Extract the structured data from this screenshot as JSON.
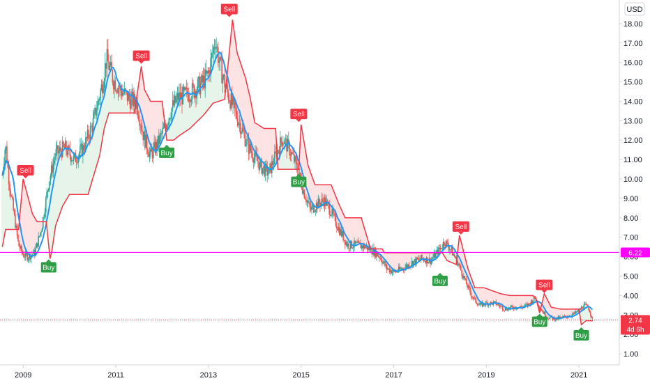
{
  "currency_button": "USD",
  "colors": {
    "up": "#26a69a",
    "down": "#ef5350",
    "ma": "#2196f3",
    "trail": "#f23645",
    "fill_sell": "#fde3e3",
    "fill_buy": "#e6f4ea",
    "hline": "#ff00ff",
    "buy_label": "#2e9e45",
    "sell_label": "#f23645",
    "price_tag": "#f23645"
  },
  "hline_label": "6.22",
  "last_price_label": "2.74",
  "countdown_label": "4d 6h",
  "chart_data": {
    "type": "candlestick",
    "x_axis": {
      "ticks": [
        "2009",
        "2011",
        "2013",
        "2015",
        "2017",
        "2019",
        "2021"
      ],
      "tick_values": [
        2009,
        2011,
        2013,
        2015,
        2017,
        2019,
        2021
      ],
      "range": [
        2008.5,
        2021.75
      ]
    },
    "y_axis": {
      "ticks": [
        "1.00",
        "2.00",
        "3.00",
        "4.00",
        "5.00",
        "6.00",
        "7.00",
        "8.00",
        "9.00",
        "10.00",
        "11.00",
        "12.00",
        "13.00",
        "14.00",
        "15.00",
        "16.00",
        "17.00",
        "18.00"
      ],
      "range": [
        0.5,
        19.0
      ]
    },
    "horizontal_line": 6.22,
    "last_price": 2.74,
    "price_path": [
      [
        2008.55,
        10.2
      ],
      [
        2008.62,
        11.8
      ],
      [
        2008.7,
        9.8
      ],
      [
        2008.8,
        8.2
      ],
      [
        2008.9,
        6.6
      ],
      [
        2009.0,
        6.1
      ],
      [
        2009.1,
        6.0
      ],
      [
        2009.25,
        6.2
      ],
      [
        2009.4,
        7.5
      ],
      [
        2009.55,
        9.8
      ],
      [
        2009.7,
        11.3
      ],
      [
        2009.9,
        11.6
      ],
      [
        2010.1,
        11.0
      ],
      [
        2010.3,
        11.6
      ],
      [
        2010.5,
        12.8
      ],
      [
        2010.7,
        14.8
      ],
      [
        2010.8,
        16.2
      ],
      [
        2010.95,
        15.1
      ],
      [
        2011.1,
        14.6
      ],
      [
        2011.3,
        14.1
      ],
      [
        2011.45,
        13.9
      ],
      [
        2011.6,
        12.2
      ],
      [
        2011.75,
        11.2
      ],
      [
        2011.9,
        11.8
      ],
      [
        2012.05,
        12.6
      ],
      [
        2012.2,
        13.6
      ],
      [
        2012.35,
        14.2
      ],
      [
        2012.5,
        14.3
      ],
      [
        2012.7,
        14.6
      ],
      [
        2012.85,
        14.9
      ],
      [
        2013.0,
        15.4
      ],
      [
        2013.15,
        17.2
      ],
      [
        2013.25,
        15.8
      ],
      [
        2013.4,
        14.5
      ],
      [
        2013.55,
        13.6
      ],
      [
        2013.7,
        12.7
      ],
      [
        2013.85,
        11.7
      ],
      [
        2014.0,
        11.1
      ],
      [
        2014.15,
        10.6
      ],
      [
        2014.3,
        10.3
      ],
      [
        2014.45,
        11.2
      ],
      [
        2014.6,
        12.1
      ],
      [
        2014.75,
        11.5
      ],
      [
        2014.9,
        10.7
      ],
      [
        2015.05,
        9.4
      ],
      [
        2015.2,
        8.4
      ],
      [
        2015.35,
        8.7
      ],
      [
        2015.5,
        8.9
      ],
      [
        2015.65,
        8.3
      ],
      [
        2015.8,
        7.5
      ],
      [
        2016.0,
        6.6
      ],
      [
        2016.2,
        6.6
      ],
      [
        2016.4,
        6.5
      ],
      [
        2016.55,
        6.3
      ],
      [
        2016.7,
        6.0
      ],
      [
        2016.85,
        5.4
      ],
      [
        2017.0,
        5.2
      ],
      [
        2017.2,
        5.4
      ],
      [
        2017.4,
        5.7
      ],
      [
        2017.6,
        5.9
      ],
      [
        2017.8,
        5.8
      ],
      [
        2018.0,
        6.4
      ],
      [
        2018.1,
        6.8
      ],
      [
        2018.25,
        6.3
      ],
      [
        2018.4,
        5.6
      ],
      [
        2018.55,
        4.7
      ],
      [
        2018.7,
        3.9
      ],
      [
        2018.85,
        3.5
      ],
      [
        2019.0,
        3.6
      ],
      [
        2019.2,
        3.6
      ],
      [
        2019.4,
        3.3
      ],
      [
        2019.6,
        3.4
      ],
      [
        2019.75,
        3.4
      ],
      [
        2019.9,
        3.5
      ],
      [
        2020.05,
        3.9
      ],
      [
        2020.15,
        3.4
      ],
      [
        2020.3,
        2.9
      ],
      [
        2020.5,
        2.8
      ],
      [
        2020.7,
        2.9
      ],
      [
        2020.85,
        3.0
      ],
      [
        2021.0,
        3.2
      ],
      [
        2021.1,
        3.5
      ],
      [
        2021.2,
        3.4
      ],
      [
        2021.3,
        2.74
      ]
    ],
    "trailing_stop": [
      [
        2008.55,
        6.5
      ],
      [
        2008.62,
        7.4
      ],
      [
        2008.9,
        7.4
      ],
      [
        2009.0,
        10.0
      ],
      [
        2009.2,
        8.2
      ],
      [
        2009.3,
        7.8
      ],
      [
        2009.5,
        7.8
      ],
      [
        2009.58,
        5.9
      ],
      [
        2009.62,
        6.3
      ],
      [
        2009.7,
        7.6
      ],
      [
        2009.85,
        8.6
      ],
      [
        2010.0,
        9.2
      ],
      [
        2010.4,
        9.2
      ],
      [
        2010.5,
        10.0
      ],
      [
        2010.65,
        11.2
      ],
      [
        2010.75,
        12.6
      ],
      [
        2010.85,
        13.4
      ],
      [
        2011.4,
        13.4
      ],
      [
        2011.55,
        15.8
      ],
      [
        2011.62,
        14.6
      ],
      [
        2011.75,
        14.0
      ],
      [
        2012.0,
        14.0
      ],
      [
        2012.1,
        12.0
      ],
      [
        2012.25,
        12.0
      ],
      [
        2012.35,
        12.2
      ],
      [
        2012.6,
        12.6
      ],
      [
        2012.9,
        13.3
      ],
      [
        2013.1,
        13.9
      ],
      [
        2013.35,
        14.1
      ],
      [
        2013.52,
        18.2
      ],
      [
        2013.62,
        16.5
      ],
      [
        2013.8,
        15.2
      ],
      [
        2013.9,
        14.2
      ],
      [
        2014.0,
        12.9
      ],
      [
        2014.2,
        12.6
      ],
      [
        2014.45,
        12.6
      ],
      [
        2014.5,
        10.5
      ],
      [
        2014.95,
        10.5
      ],
      [
        2015.0,
        12.8
      ],
      [
        2015.15,
        10.7
      ],
      [
        2015.3,
        9.7
      ],
      [
        2015.65,
        9.7
      ],
      [
        2015.8,
        8.8
      ],
      [
        2015.95,
        8.0
      ],
      [
        2016.3,
        8.0
      ],
      [
        2016.5,
        6.4
      ],
      [
        2016.75,
        6.4
      ],
      [
        2016.8,
        6.2
      ],
      [
        2017.4,
        6.2
      ],
      [
        2017.8,
        6.2
      ],
      [
        2018.05,
        6.2
      ],
      [
        2018.15,
        5.8
      ],
      [
        2018.35,
        5.6
      ],
      [
        2018.42,
        7.1
      ],
      [
        2018.6,
        5.4
      ],
      [
        2018.75,
        4.4
      ],
      [
        2018.95,
        4.4
      ],
      [
        2019.3,
        4.1
      ],
      [
        2019.5,
        4.0
      ],
      [
        2020.0,
        4.0
      ],
      [
        2020.08,
        3.8
      ],
      [
        2020.15,
        3.1
      ],
      [
        2020.25,
        4.1
      ],
      [
        2020.4,
        3.4
      ],
      [
        2020.6,
        3.3
      ],
      [
        2021.0,
        3.3
      ],
      [
        2021.05,
        2.5
      ],
      [
        2021.15,
        2.7
      ],
      [
        2021.3,
        2.7
      ]
    ],
    "signals": [
      {
        "type": "Sell",
        "x": 2009.05,
        "y": 10.0
      },
      {
        "type": "Buy",
        "x": 2009.55,
        "y": 5.9
      },
      {
        "type": "Sell",
        "x": 2011.55,
        "y": 15.9
      },
      {
        "type": "Buy",
        "x": 2012.1,
        "y": 11.8
      },
      {
        "type": "Sell",
        "x": 2013.45,
        "y": 18.3
      },
      {
        "type": "Buy",
        "x": 2014.95,
        "y": 10.3
      },
      {
        "type": "Sell",
        "x": 2014.95,
        "y": 12.9
      },
      {
        "type": "Buy",
        "x": 2018.0,
        "y": 5.2
      },
      {
        "type": "Sell",
        "x": 2018.45,
        "y": 7.1
      },
      {
        "type": "Sell",
        "x": 2020.25,
        "y": 4.1
      },
      {
        "type": "Buy",
        "x": 2020.15,
        "y": 3.1
      },
      {
        "type": "Buy",
        "x": 2021.05,
        "y": 2.4
      }
    ]
  }
}
